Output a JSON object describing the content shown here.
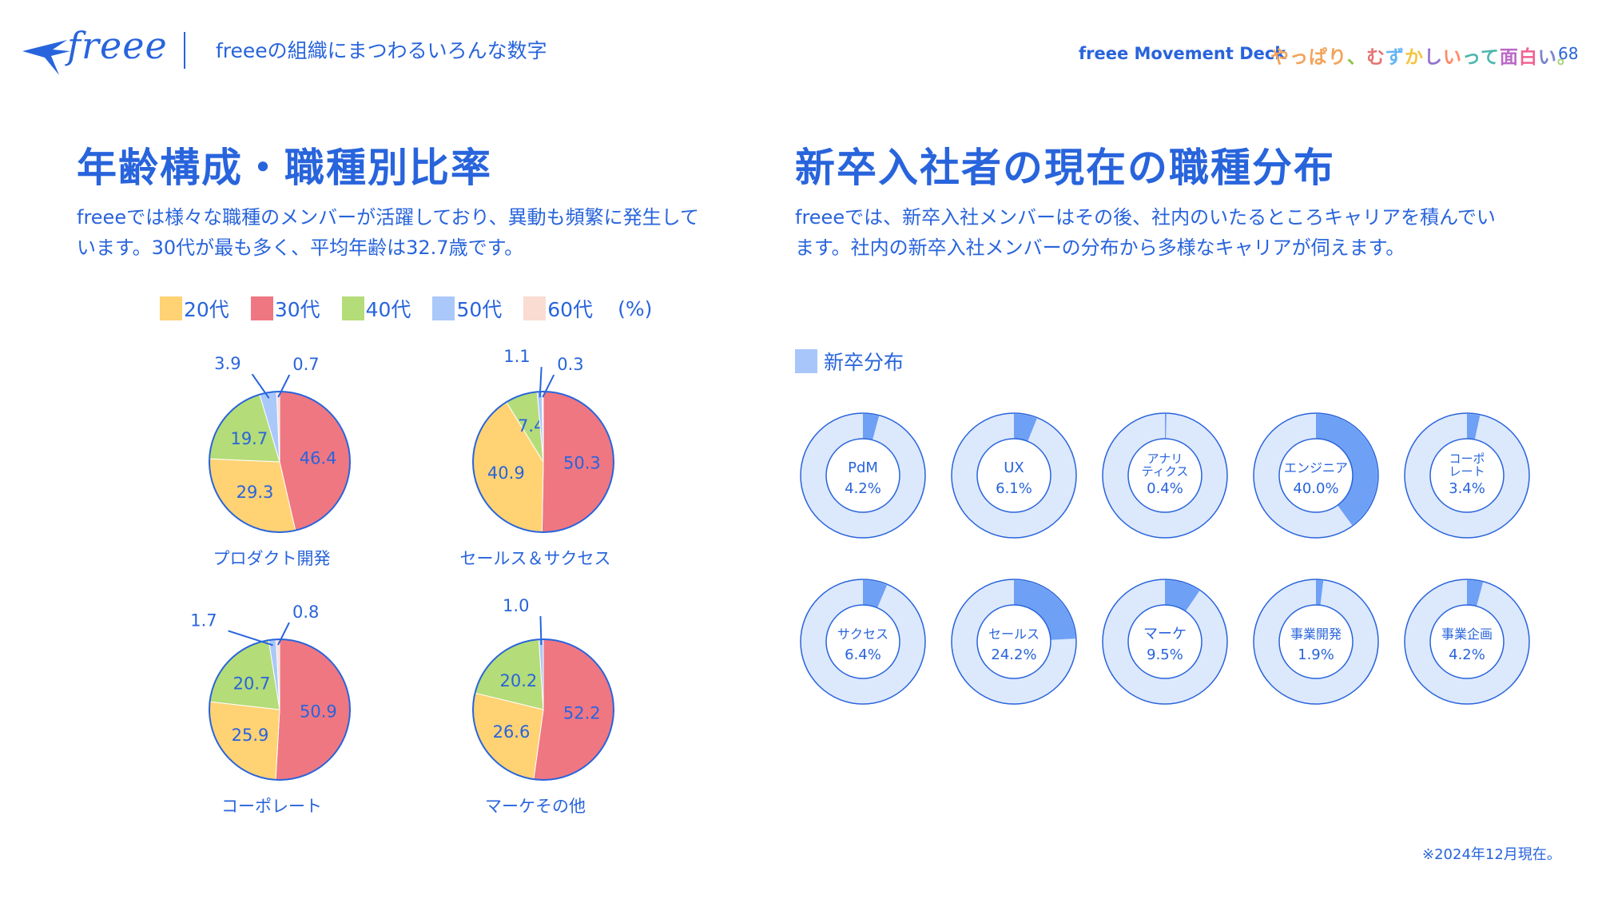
{
  "header": {
    "logo_text": "freee",
    "title": "freeeの組織にまつわるいろんな数字",
    "deck_name": "freee Movement Deck",
    "tagline": [
      "やっぱり",
      "、",
      "む",
      "ず",
      "か",
      "し",
      "い",
      "って",
      "面",
      "白",
      "い",
      "。"
    ],
    "tagline_colors": [
      "#f2a35a",
      "#8bc34a",
      "#e57373",
      "#64b5f6",
      "#f4c542",
      "#9575cd",
      "#ff8a65",
      "#4db6ac",
      "#ba68c8",
      "#f06292",
      "#7986cb",
      "#aed581"
    ],
    "page_number": "68"
  },
  "left": {
    "title": "年齢構成・職種別比率",
    "description": "freeeでは様々な職種のメンバーが活躍しており、異動も頻繁に発生しています。30代が最も多く、平均年齢は32.7歳です。"
  },
  "right": {
    "title": "新卒入社者の現在の職種分布",
    "description": "freeeでは、新卒入社メンバーはその後、社内のいたるところキャリアを積んでいます。社内の新卒入社メンバーの分布から多様なキャリアが伺えます。",
    "legend_label": "新卒分布"
  },
  "colors": {
    "primary": "#2864dc",
    "age_20s": "#ffd274",
    "age_30s": "#ef7782",
    "age_40s": "#b4dc78",
    "age_50s": "#aac8fa",
    "age_60s": "#fadcd2",
    "donut_track": "#dce8fc",
    "donut_fill": "#6ea0f5"
  },
  "chart_data": [
    {
      "type": "pie",
      "title": "年齢構成・職種別比率",
      "legend": [
        "20代",
        "30代",
        "40代",
        "50代",
        "60代"
      ],
      "unit": "(%)",
      "legend_placement": "top",
      "pies": [
        {
          "name": "プロダクト開発",
          "values": {
            "20代": 29.3,
            "30代": 46.4,
            "40代": 19.7,
            "50代": 3.9,
            "60代": 0.7
          }
        },
        {
          "name": "セールス＆サクセス",
          "values": {
            "20代": 40.9,
            "30代": 50.3,
            "40代": 7.4,
            "50代": 1.1,
            "60代": 0.3
          }
        },
        {
          "name": "コーポレート",
          "values": {
            "20代": 25.9,
            "30代": 50.9,
            "40代": 20.7,
            "50代": 1.7,
            "60代": 0.8
          }
        },
        {
          "name": "マーケその他",
          "values": {
            "20代": 26.6,
            "30代": 52.2,
            "40代": 20.2,
            "50代": 1.0,
            "60代": 0.0
          }
        }
      ]
    },
    {
      "type": "pie",
      "title": "新卒入社者の現在の職種分布",
      "legend": [
        "新卒分布"
      ],
      "variant": "donut",
      "categories": [
        "PdM",
        "UX",
        "アナリティクス",
        "エンジニア",
        "コーポレート",
        "サクセス",
        "セールス",
        "マーケ",
        "事業開発",
        "事業企画"
      ],
      "labels": [
        [
          "PdM"
        ],
        [
          "UX"
        ],
        [
          "アナリ",
          "ティクス"
        ],
        [
          "エンジニア"
        ],
        [
          "コーポ",
          "レート"
        ],
        [
          "サクセス"
        ],
        [
          "セールス"
        ],
        [
          "マーケ"
        ],
        [
          "事業開発"
        ],
        [
          "事業企画"
        ]
      ],
      "values": [
        4.2,
        6.1,
        0.4,
        40.0,
        3.4,
        6.4,
        24.2,
        9.5,
        1.9,
        4.2
      ],
      "value_labels": [
        "4.2%",
        "6.1%",
        "0.4%",
        "40.0%",
        "3.4%",
        "6.4%",
        "24.2%",
        "9.5%",
        "1.9%",
        "4.2%"
      ]
    }
  ],
  "footnote": "※2024年12月現在。"
}
